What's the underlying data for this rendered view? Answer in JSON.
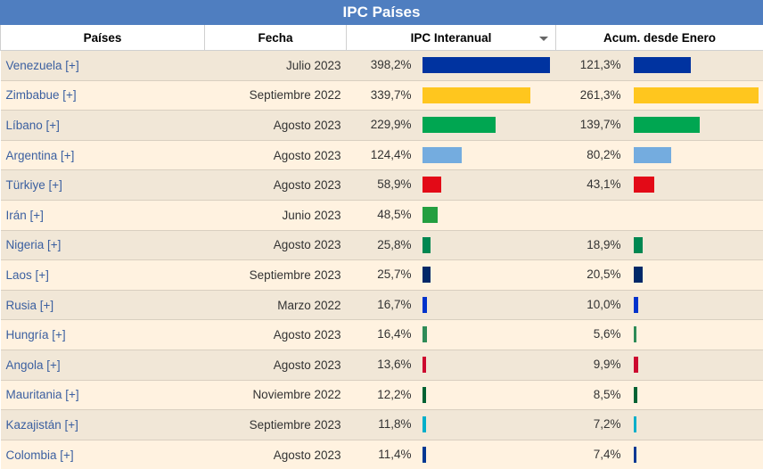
{
  "title": "IPC Países",
  "columns": {
    "country": "Países",
    "date": "Fecha",
    "ipc": "IPC Interanual",
    "acum": "Acum. desde Enero"
  },
  "scale": {
    "ipc_max": 398.2,
    "acum_max": 261.3
  },
  "rows": [
    {
      "country": "Venezuela [+]",
      "date": "Julio 2023",
      "ipc": "398,2%",
      "ipc_value": 398.2,
      "acum": "121,3%",
      "acum_value": 121.3,
      "color": "#0033a0"
    },
    {
      "country": "Zimbabue [+]",
      "date": "Septiembre 2022",
      "ipc": "339,7%",
      "ipc_value": 339.7,
      "acum": "261,3%",
      "acum_value": 261.3,
      "color": "#ffc61e"
    },
    {
      "country": "Líbano [+]",
      "date": "Agosto 2023",
      "ipc": "229,9%",
      "ipc_value": 229.9,
      "acum": "139,7%",
      "acum_value": 139.7,
      "color": "#00a651"
    },
    {
      "country": "Argentina [+]",
      "date": "Agosto 2023",
      "ipc": "124,4%",
      "ipc_value": 124.4,
      "acum": "80,2%",
      "acum_value": 80.2,
      "color": "#74acdf"
    },
    {
      "country": "Türkiye [+]",
      "date": "Agosto 2023",
      "ipc": "58,9%",
      "ipc_value": 58.9,
      "acum": "43,1%",
      "acum_value": 43.1,
      "color": "#e30a17"
    },
    {
      "country": "Irán [+]",
      "date": "Junio 2023",
      "ipc": "48,5%",
      "ipc_value": 48.5,
      "acum": "",
      "acum_value": null,
      "color": "#239f40"
    },
    {
      "country": "Nigeria [+]",
      "date": "Agosto 2023",
      "ipc": "25,8%",
      "ipc_value": 25.8,
      "acum": "18,9%",
      "acum_value": 18.9,
      "color": "#008751"
    },
    {
      "country": "Laos [+]",
      "date": "Septiembre 2023",
      "ipc": "25,7%",
      "ipc_value": 25.7,
      "acum": "20,5%",
      "acum_value": 20.5,
      "color": "#002868"
    },
    {
      "country": "Rusia [+]",
      "date": "Marzo 2022",
      "ipc": "16,7%",
      "ipc_value": 16.7,
      "acum": "10,0%",
      "acum_value": 10.0,
      "color": "#0033cc"
    },
    {
      "country": "Hungría [+]",
      "date": "Agosto 2023",
      "ipc": "16,4%",
      "ipc_value": 16.4,
      "acum": "5,6%",
      "acum_value": 5.6,
      "color": "#2e8b57"
    },
    {
      "country": "Angola [+]",
      "date": "Agosto 2023",
      "ipc": "13,6%",
      "ipc_value": 13.6,
      "acum": "9,9%",
      "acum_value": 9.9,
      "color": "#cc092f"
    },
    {
      "country": "Mauritania [+]",
      "date": "Noviembre 2022",
      "ipc": "12,2%",
      "ipc_value": 12.2,
      "acum": "8,5%",
      "acum_value": 8.5,
      "color": "#006233"
    },
    {
      "country": "Kazajistán [+]",
      "date": "Septiembre 2023",
      "ipc": "11,8%",
      "ipc_value": 11.8,
      "acum": "7,2%",
      "acum_value": 7.2,
      "color": "#00afca"
    },
    {
      "country": "Colombia [+]",
      "date": "Agosto 2023",
      "ipc": "11,4%",
      "ipc_value": 11.4,
      "acum": "7,4%",
      "acum_value": 7.4,
      "color": "#003893"
    }
  ]
}
